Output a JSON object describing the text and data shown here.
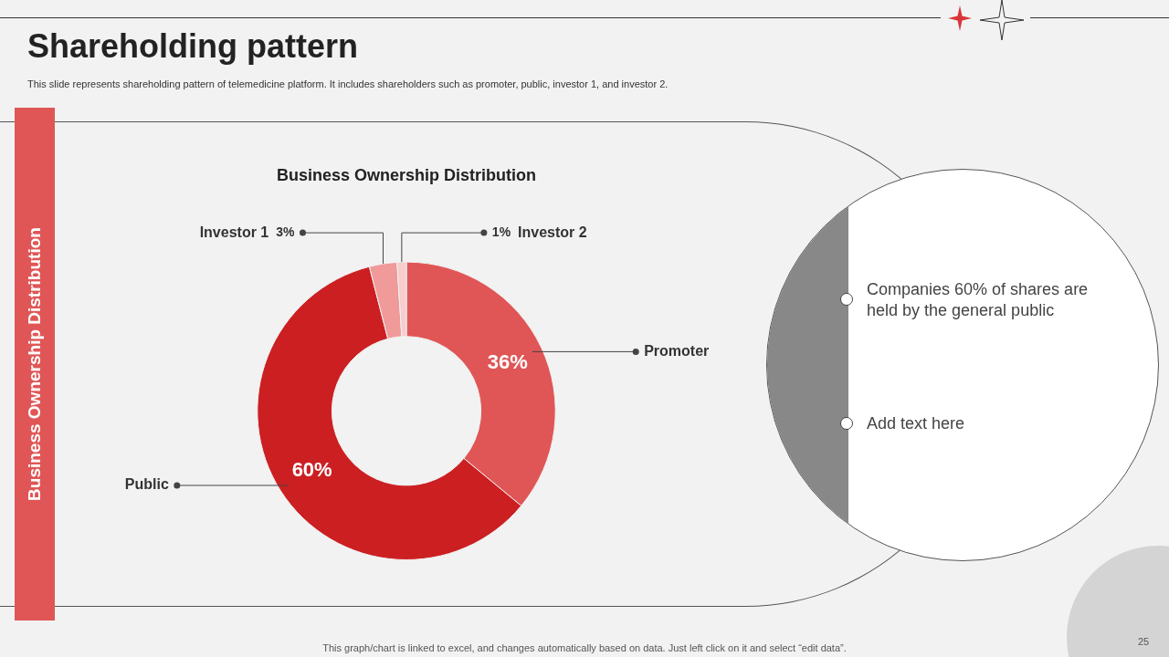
{
  "chart_data": {
    "type": "donut",
    "title": "Business Ownership Distribution",
    "categories": [
      "Promoter",
      "Public",
      "Investor 1",
      "Investor 2"
    ],
    "values": [
      36,
      60,
      3,
      1
    ],
    "colors": [
      "#e05656",
      "#cc1f22",
      "#f09a9a",
      "#f6cccc"
    ],
    "value_labels": [
      "36%",
      "60%",
      "3%",
      "1%"
    ],
    "legend": false,
    "annotations": [
      "Shareholding pattern",
      "This slide represents shareholding pattern of telemedicine platform. It includes shareholders such as promoter, public, investor 1, and investor 2.",
      "Business Ownership Distribution",
      "Companies 60% of shares are held by the general public",
      "Add text here",
      "This graph/chart is linked to excel,  and changes automatically based on data. Just left click on it and select “edit data”.",
      "25"
    ]
  }
}
